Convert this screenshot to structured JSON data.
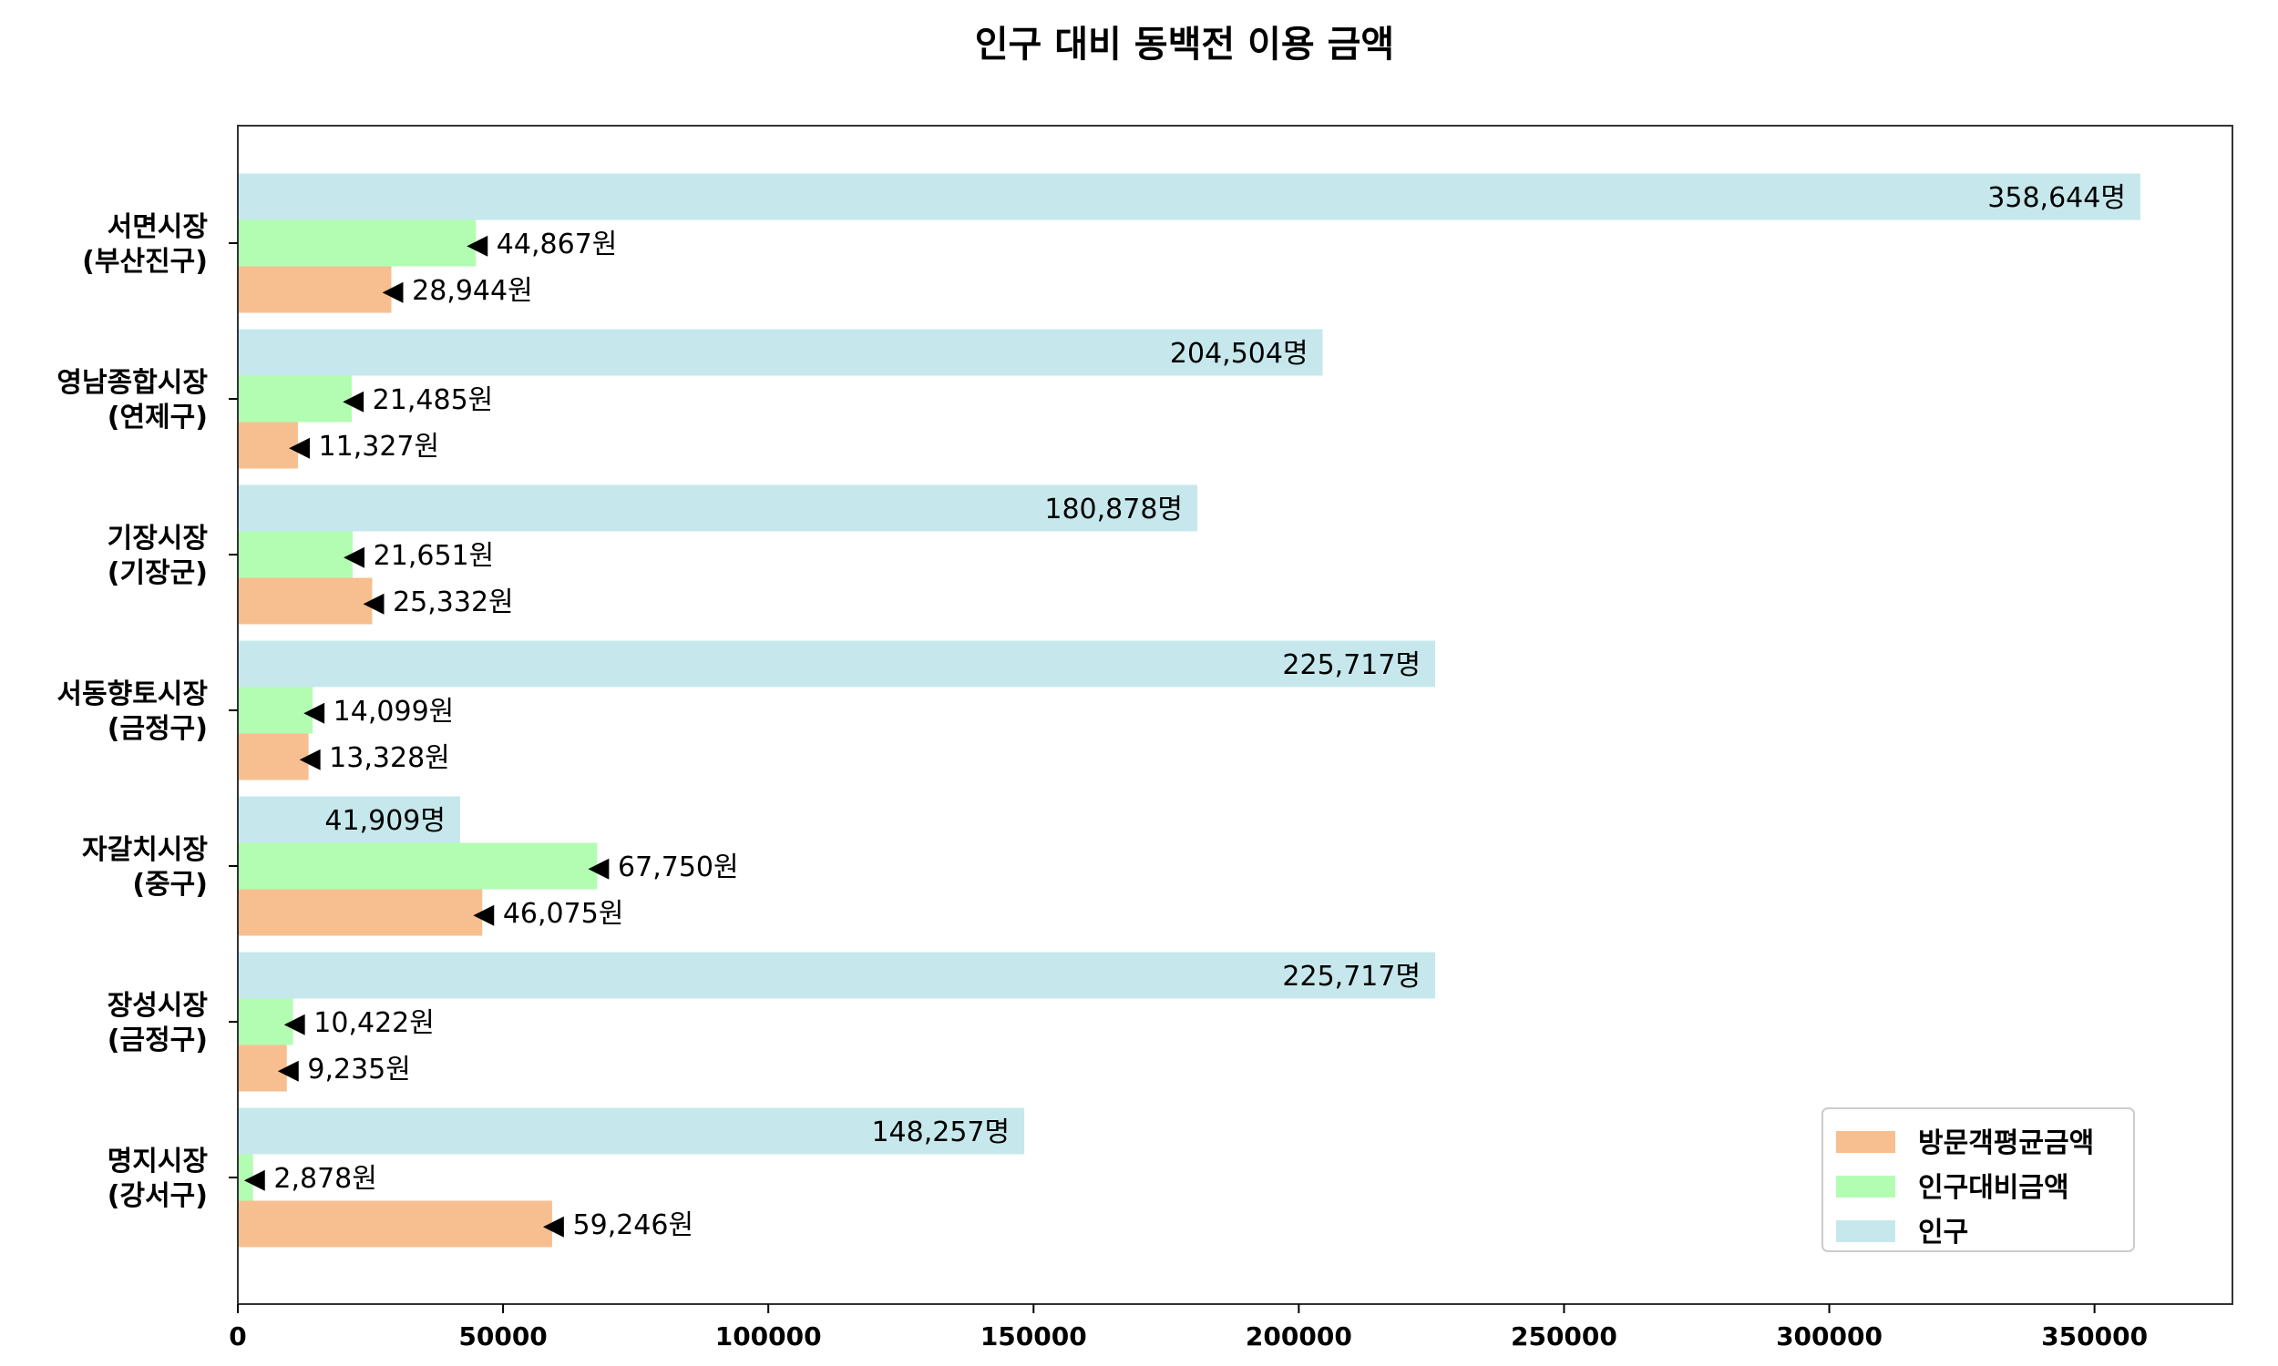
{
  "chart_data": {
    "type": "bar",
    "orientation": "horizontal",
    "title": "인구 대비 동백전 이용 금액",
    "categories": [
      [
        "서면시장",
        "(부산진구)"
      ],
      [
        "영남종합시장",
        "(연제구)"
      ],
      [
        "기장시장",
        "(기장군)"
      ],
      [
        "서동향토시장",
        "(금정구)"
      ],
      [
        "자갈치시장",
        "(중구)"
      ],
      [
        "장성시장",
        "(금정구)"
      ],
      [
        "명지시장",
        "(강서구)"
      ]
    ],
    "series": [
      {
        "name": "인구",
        "color": "#c6e8ec",
        "values": [
          358644,
          204504,
          180878,
          225717,
          41909,
          225717,
          148257
        ],
        "labels": [
          "358,644명",
          "204,504명",
          "180,878명",
          "225,717명",
          "41,909명",
          "225,717명",
          "148,257명"
        ]
      },
      {
        "name": "인구대비금액",
        "color": "#b3fdb3",
        "values": [
          44867,
          21485,
          21651,
          14099,
          67750,
          10422,
          2878
        ],
        "labels": [
          "◀ 44,867원",
          "◀ 21,485원",
          "◀ 21,651원",
          "◀ 14,099원",
          "◀ 67,750원",
          "◀ 10,422원",
          "◀ 2,878원"
        ]
      },
      {
        "name": "방문객평균금액",
        "color": "#f7bf90",
        "values": [
          28944,
          11327,
          25332,
          13328,
          46075,
          9235,
          59246
        ],
        "labels": [
          "◀ 28,944원",
          "◀ 11,327원",
          "◀ 25,332원",
          "◀ 13,328원",
          "◀ 46,075원",
          "◀ 9,235원",
          "◀ 59,246원"
        ]
      }
    ],
    "xlim": [
      0,
      376000
    ],
    "xticks": [
      0,
      50000,
      100000,
      150000,
      200000,
      250000,
      300000,
      350000
    ],
    "xtick_labels": [
      "0",
      "50000",
      "100000",
      "150000",
      "200000",
      "250000",
      "300000",
      "350000"
    ],
    "legend": {
      "placement": "lower-right",
      "entries": [
        "방문객평균금액",
        "인구대비금액",
        "인구"
      ]
    },
    "grid": false
  }
}
